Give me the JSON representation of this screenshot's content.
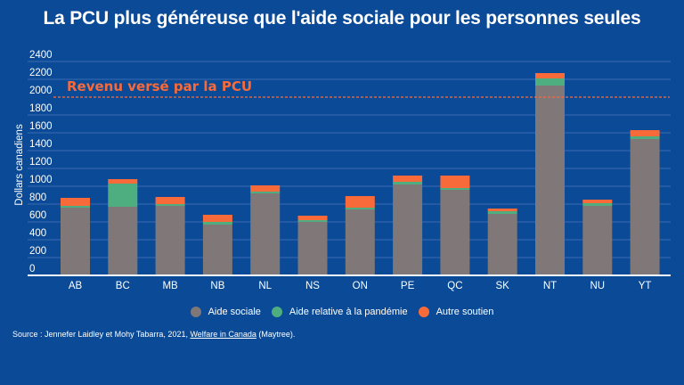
{
  "title": "La PCU plus généreuse que l'aide sociale pour les personnes seules",
  "source": {
    "prefix": "Source : Jennefer Laidley et Mohy Tabarra, 2021, ",
    "link_text": "Welfare in Canada",
    "suffix": " (Maytree)."
  },
  "colors": {
    "background": "#0a4a96",
    "aide_sociale": "#7f7778",
    "aide_pandemie": "#4fae7f",
    "autre_soutien": "#f96a3b",
    "reference_line": "#f96a3b"
  },
  "chart_data": {
    "type": "bar",
    "stacked": true,
    "title": "La PCU plus généreuse que l'aide sociale pour les personnes seules",
    "xlabel": "",
    "ylabel": "Dollars canadiens",
    "ylim": [
      0,
      2400
    ],
    "yticks": [
      0,
      200,
      400,
      600,
      800,
      1000,
      1200,
      1400,
      1600,
      1800,
      2000,
      2200,
      2400
    ],
    "grid": true,
    "legend_position": "bottom-center",
    "categories": [
      "AB",
      "BC",
      "MB",
      "NB",
      "NL",
      "NS",
      "ON",
      "PE",
      "QC",
      "SK",
      "NT",
      "NU",
      "YT"
    ],
    "series": [
      {
        "name": "Aide sociale",
        "color": "#7f7778",
        "values": [
          760,
          770,
          780,
          570,
          920,
          600,
          740,
          1020,
          960,
          690,
          2130,
          780,
          1530
        ]
      },
      {
        "name": "Aide relative à la pandémie",
        "color": "#4fae7f",
        "values": [
          20,
          260,
          20,
          30,
          20,
          20,
          20,
          30,
          20,
          30,
          80,
          30,
          30
        ]
      },
      {
        "name": "Autre soutien",
        "color": "#f96a3b",
        "values": [
          90,
          50,
          80,
          80,
          70,
          50,
          130,
          70,
          140,
          30,
          60,
          40,
          70
        ]
      }
    ],
    "reference_line": {
      "value": 2000,
      "label": "Revenu versé par la PCU",
      "style": "dashed"
    }
  }
}
